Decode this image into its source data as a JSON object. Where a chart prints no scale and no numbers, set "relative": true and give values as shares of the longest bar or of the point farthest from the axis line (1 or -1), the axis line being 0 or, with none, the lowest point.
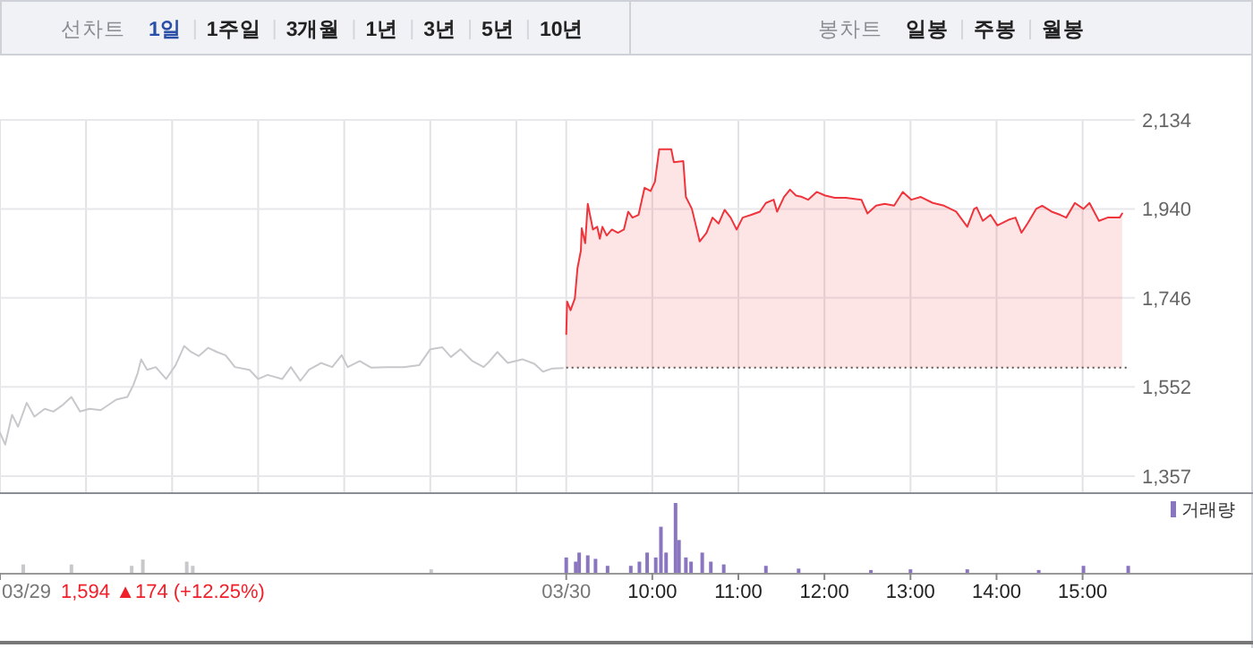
{
  "chart_data": [
    {
      "type": "line",
      "xlim": [
        2.42,
        16.98
      ],
      "ylim": [
        1322,
        2134
      ],
      "xticks": [
        2.42,
        3.42,
        4.42,
        5.42,
        6.42,
        7.42,
        8.42,
        9,
        10,
        11,
        12,
        13,
        14,
        15
      ],
      "yticks": [
        {
          "value": 1357,
          "label": "1,357"
        },
        {
          "value": 1552,
          "label": "1,552"
        },
        {
          "value": 1746,
          "label": "1,746"
        },
        {
          "value": 1940,
          "label": "1,940"
        },
        {
          "value": 2134,
          "label": "2,134"
        }
      ],
      "tick_labels": "y",
      "grid": true,
      "ref_lines": [
        {
          "axis": "y",
          "value": 1594,
          "color": "#555555",
          "line_style": "dotted"
        }
      ],
      "annotations": [
        "선차트",
        "1일",
        "1주일",
        "3개월",
        "1년",
        "3년",
        "5년",
        "10년",
        "봉차트",
        "일봉",
        "주봉",
        "월봉"
      ],
      "series": [
        {
          "type": "line",
          "color": "#c8c8cc",
          "x": [
            2.42,
            2.48,
            2.56,
            2.63,
            2.73,
            2.82,
            2.94,
            3.04,
            3.14,
            3.25,
            3.35,
            3.46,
            3.59,
            3.77,
            3.9,
            3.97,
            4.02,
            4.06,
            4.13,
            4.23,
            4.35,
            4.46,
            4.56,
            4.64,
            4.73,
            4.84,
            4.94,
            5.04,
            5.15,
            5.32,
            5.42,
            5.53,
            5.7,
            5.8,
            5.91,
            6.01,
            6.15,
            6.28,
            6.39,
            6.46,
            6.6,
            6.73,
            6.91,
            7.11,
            7.29,
            7.42,
            7.56,
            7.66,
            7.77,
            7.91,
            8.04,
            8.11,
            8.2,
            8.32,
            8.49,
            8.63,
            8.73,
            8.84,
            8.96
          ],
          "values": [
            1452,
            1426,
            1491,
            1465,
            1517,
            1487,
            1504,
            1498,
            1511,
            1530,
            1498,
            1504,
            1501,
            1524,
            1530,
            1556,
            1582,
            1612,
            1589,
            1595,
            1569,
            1599,
            1641,
            1628,
            1619,
            1637,
            1628,
            1621,
            1595,
            1589,
            1569,
            1578,
            1569,
            1595,
            1565,
            1589,
            1604,
            1595,
            1621,
            1595,
            1608,
            1594,
            1595,
            1595,
            1599,
            1634,
            1638,
            1617,
            1634,
            1608,
            1595,
            1608,
            1628,
            1604,
            1612,
            1602,
            1585,
            1592,
            1593
          ]
        },
        {
          "type": "area",
          "color": "#f0343c",
          "x": [
            9,
            9.01,
            9.05,
            9.1,
            9.13,
            9.17,
            9.18,
            9.22,
            9.25,
            9.31,
            9.36,
            9.39,
            9.42,
            9.47,
            9.53,
            9.6,
            9.67,
            9.72,
            9.77,
            9.84,
            9.91,
            9.98,
            10.03,
            10.08,
            10.22,
            10.25,
            10.36,
            10.39,
            10.46,
            10.51,
            10.55,
            10.63,
            10.7,
            10.77,
            10.84,
            10.91,
            10.98,
            11.05,
            11.15,
            11.25,
            11.32,
            11.41,
            11.45,
            11.53,
            11.6,
            11.67,
            11.74,
            11.81,
            11.91,
            12.01,
            12.12,
            12.25,
            12.43,
            12.5,
            12.6,
            12.7,
            12.81,
            12.91,
            13.01,
            13.12,
            13.26,
            13.39,
            13.53,
            13.66,
            13.74,
            13.77,
            13.84,
            13.93,
            14.01,
            14.15,
            14.22,
            14.29,
            14.36,
            14.46,
            14.53,
            14.64,
            14.74,
            14.81,
            14.91,
            15.01,
            15.08,
            15.19,
            15.29,
            15.43,
            15.46
          ],
          "values": [
            1667,
            1738,
            1719,
            1745,
            1810,
            1849,
            1898,
            1865,
            1951,
            1895,
            1901,
            1875,
            1901,
            1882,
            1895,
            1888,
            1895,
            1934,
            1921,
            1927,
            1986,
            1979,
            1999,
            2070,
            2070,
            2042,
            2044,
            1966,
            1940,
            1901,
            1869,
            1888,
            1921,
            1908,
            1938,
            1921,
            1895,
            1921,
            1927,
            1934,
            1953,
            1960,
            1934,
            1966,
            1982,
            1969,
            1966,
            1960,
            1977,
            1969,
            1964,
            1964,
            1960,
            1930,
            1947,
            1951,
            1947,
            1977,
            1960,
            1966,
            1953,
            1947,
            1934,
            1901,
            1940,
            1943,
            1914,
            1927,
            1904,
            1917,
            1921,
            1888,
            1908,
            1940,
            1947,
            1934,
            1927,
            1921,
            1953,
            1940,
            1953,
            1914,
            1921,
            1921,
            1930
          ]
        }
      ]
    },
    {
      "type": "bar",
      "relative": true,
      "xlim": [
        2.42,
        16.98
      ],
      "xticks": [
        {
          "value": 2.42,
          "label": "03/29"
        },
        {
          "value": 9,
          "label": "03/30"
        },
        {
          "value": 10,
          "label": "10:00"
        },
        {
          "value": 11,
          "label": "11:00"
        },
        {
          "value": 12,
          "label": "12:00"
        },
        {
          "value": 13,
          "label": "13:00"
        },
        {
          "value": 14,
          "label": "14:00"
        },
        {
          "value": 15,
          "label": "15:00"
        }
      ],
      "tick_labels": "x",
      "legend": "top right",
      "annotations": [
        "1,594 ▲174 (+12.25%)"
      ],
      "series": [
        {
          "color": "#c8c8cc",
          "x": [
            2.69,
            3.25,
            3.95,
            4.08,
            4.59,
            4.66,
            7.43
          ],
          "values": [
            0.12,
            0.12,
            0.1,
            0.19,
            0.16,
            0.1,
            0.05
          ]
        },
        {
          "name": "거래량",
          "color": "#8a76c0",
          "x": [
            9,
            9.11,
            9.15,
            9.25,
            9.34,
            9.48,
            9.75,
            9.85,
            9.94,
            10.04,
            10.1,
            10.16,
            10.27,
            10.31,
            10.39,
            10.45,
            10.58,
            10.68,
            10.83,
            11.32,
            11.7,
            12.54,
            13,
            13.66,
            14.49,
            15.01,
            15.53
          ],
          "values": [
            0.22,
            0.16,
            0.29,
            0.25,
            0.2,
            0.1,
            0.1,
            0.16,
            0.29,
            0.22,
            0.66,
            0.29,
            1,
            0.47,
            0.22,
            0.16,
            0.29,
            0.16,
            0.12,
            0.1,
            0.06,
            0.04,
            0.05,
            0.05,
            0.04,
            0.1,
            0.1
          ]
        }
      ]
    }
  ]
}
